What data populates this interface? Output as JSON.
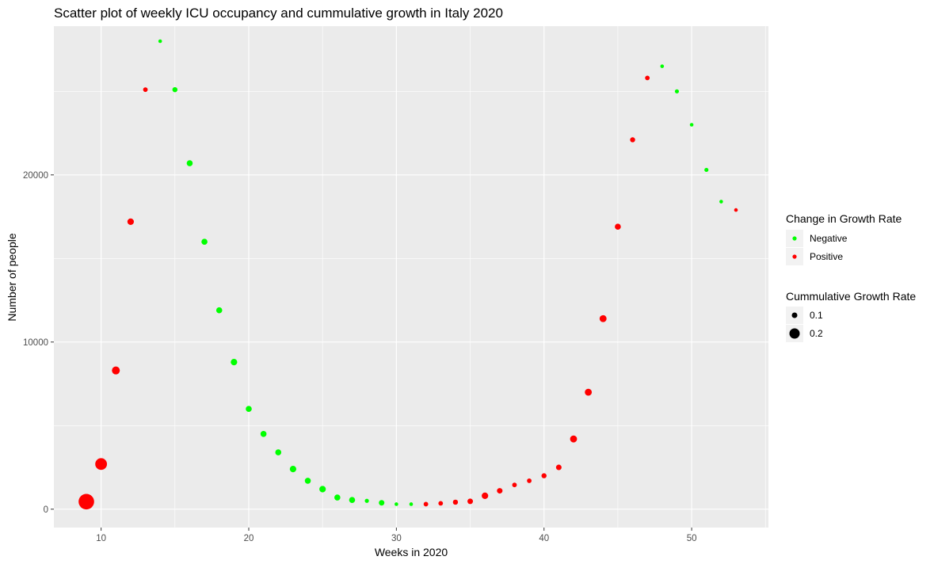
{
  "chart_data": {
    "type": "scatter",
    "title": "Scatter plot of weekly ICU occupancy and cummulative growth in Italy 2020",
    "xlabel": "Weeks in 2020",
    "ylabel": "Number of people",
    "xlim": [
      6.8,
      55.2
    ],
    "ylim": [
      -1100,
      28900
    ],
    "x_ticks": [
      10,
      20,
      30,
      40,
      50
    ],
    "x_tick_labels": [
      "10",
      "20",
      "30",
      "40",
      "50"
    ],
    "y_ticks": [
      0,
      10000,
      20000
    ],
    "y_tick_labels": [
      "0",
      "10000",
      "20000"
    ],
    "grid": true,
    "panel_background": "#ebebeb",
    "grid_color": "#ffffff",
    "color_legend": {
      "title": "Change in Growth Rate",
      "placement": "right",
      "entries": [
        {
          "label": "Negative",
          "color": "#00ff00"
        },
        {
          "label": "Positive",
          "color": "#ff0000"
        }
      ]
    },
    "size_legend": {
      "title": "Cummulative Growth Rate",
      "placement": "right",
      "entries": [
        {
          "label": "0.1",
          "value": 0.1
        },
        {
          "label": "0.2",
          "value": 0.2
        }
      ]
    },
    "points": [
      {
        "x": 9,
        "y": 450,
        "growth": 0.26,
        "change": "Positive"
      },
      {
        "x": 10,
        "y": 2700,
        "growth": 0.18,
        "change": "Positive"
      },
      {
        "x": 11,
        "y": 8300,
        "growth": 0.1,
        "change": "Positive"
      },
      {
        "x": 12,
        "y": 17200,
        "growth": 0.07,
        "change": "Positive"
      },
      {
        "x": 13,
        "y": 25100,
        "growth": 0.03,
        "change": "Positive"
      },
      {
        "x": 14,
        "y": 28000,
        "growth": 0.01,
        "change": "Negative"
      },
      {
        "x": 15,
        "y": 25100,
        "growth": 0.04,
        "change": "Negative"
      },
      {
        "x": 16,
        "y": 20700,
        "growth": 0.06,
        "change": "Negative"
      },
      {
        "x": 17,
        "y": 16000,
        "growth": 0.06,
        "change": "Negative"
      },
      {
        "x": 18,
        "y": 11900,
        "growth": 0.06,
        "change": "Negative"
      },
      {
        "x": 19,
        "y": 8800,
        "growth": 0.07,
        "change": "Negative"
      },
      {
        "x": 20,
        "y": 6000,
        "growth": 0.06,
        "change": "Negative"
      },
      {
        "x": 21,
        "y": 4500,
        "growth": 0.06,
        "change": "Negative"
      },
      {
        "x": 22,
        "y": 3400,
        "growth": 0.06,
        "change": "Negative"
      },
      {
        "x": 23,
        "y": 2400,
        "growth": 0.07,
        "change": "Negative"
      },
      {
        "x": 24,
        "y": 1700,
        "growth": 0.06,
        "change": "Negative"
      },
      {
        "x": 25,
        "y": 1200,
        "growth": 0.07,
        "change": "Negative"
      },
      {
        "x": 26,
        "y": 700,
        "growth": 0.06,
        "change": "Negative"
      },
      {
        "x": 27,
        "y": 550,
        "growth": 0.06,
        "change": "Negative"
      },
      {
        "x": 28,
        "y": 500,
        "growth": 0.02,
        "change": "Negative"
      },
      {
        "x": 29,
        "y": 380,
        "growth": 0.05,
        "change": "Negative"
      },
      {
        "x": 30,
        "y": 300,
        "growth": 0.01,
        "change": "Negative"
      },
      {
        "x": 31,
        "y": 300,
        "growth": 0.01,
        "change": "Negative"
      },
      {
        "x": 32,
        "y": 300,
        "growth": 0.03,
        "change": "Positive"
      },
      {
        "x": 33,
        "y": 350,
        "growth": 0.03,
        "change": "Positive"
      },
      {
        "x": 34,
        "y": 420,
        "growth": 0.04,
        "change": "Positive"
      },
      {
        "x": 35,
        "y": 470,
        "growth": 0.05,
        "change": "Positive"
      },
      {
        "x": 36,
        "y": 800,
        "growth": 0.07,
        "change": "Positive"
      },
      {
        "x": 37,
        "y": 1100,
        "growth": 0.05,
        "change": "Positive"
      },
      {
        "x": 38,
        "y": 1450,
        "growth": 0.03,
        "change": "Positive"
      },
      {
        "x": 39,
        "y": 1700,
        "growth": 0.03,
        "change": "Positive"
      },
      {
        "x": 40,
        "y": 2000,
        "growth": 0.04,
        "change": "Positive"
      },
      {
        "x": 41,
        "y": 2500,
        "growth": 0.05,
        "change": "Positive"
      },
      {
        "x": 42,
        "y": 4200,
        "growth": 0.08,
        "change": "Positive"
      },
      {
        "x": 43,
        "y": 7000,
        "growth": 0.08,
        "change": "Positive"
      },
      {
        "x": 44,
        "y": 11400,
        "growth": 0.08,
        "change": "Positive"
      },
      {
        "x": 45,
        "y": 16900,
        "growth": 0.06,
        "change": "Positive"
      },
      {
        "x": 46,
        "y": 22100,
        "growth": 0.04,
        "change": "Positive"
      },
      {
        "x": 47,
        "y": 25800,
        "growth": 0.03,
        "change": "Positive"
      },
      {
        "x": 48,
        "y": 26500,
        "growth": 0.01,
        "change": "Negative"
      },
      {
        "x": 49,
        "y": 25000,
        "growth": 0.02,
        "change": "Negative"
      },
      {
        "x": 50,
        "y": 23000,
        "growth": 0.01,
        "change": "Negative"
      },
      {
        "x": 51,
        "y": 20300,
        "growth": 0.02,
        "change": "Negative"
      },
      {
        "x": 52,
        "y": 18400,
        "growth": 0.01,
        "change": "Negative"
      },
      {
        "x": 53,
        "y": 17900,
        "growth": 0.01,
        "change": "Positive"
      }
    ]
  }
}
